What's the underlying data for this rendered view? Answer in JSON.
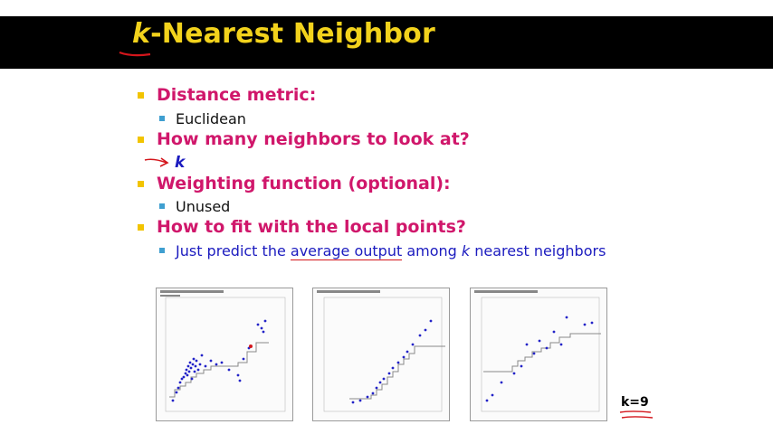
{
  "slide": {
    "title_k": "k",
    "title_rest": "-Nearest Neighbor",
    "bullets": [
      {
        "heading": "Distance metric:",
        "sub": "Euclidean"
      },
      {
        "heading": "How many neighbors to look at?",
        "sub": "k"
      },
      {
        "heading": "Weighting function (optional):",
        "sub": "Unused"
      },
      {
        "heading": "How to fit with the local points?",
        "sub_pre": "Just predict the ",
        "sub_underlined": "average output",
        "sub_mid": " among ",
        "sub_k": "k",
        "sub_post": " nearest neighbors"
      }
    ],
    "k_label": "k=9"
  },
  "colors": {
    "title_bar": "#000000",
    "title_text": "#f2d21c",
    "heading": "#d0176b",
    "annotation": "#d4161c",
    "points": "#2323c8"
  },
  "chart_data": [
    {
      "type": "scatter",
      "series": [
        {
          "values": [
            [
              0.02,
              5
            ],
            [
              0.04,
              10
            ],
            [
              0.05,
              12
            ],
            [
              0.06,
              15
            ],
            [
              0.07,
              18
            ],
            [
              0.08,
              20
            ],
            [
              0.09,
              17
            ],
            [
              0.1,
              22
            ],
            [
              0.11,
              19
            ],
            [
              0.12,
              24
            ],
            [
              0.13,
              27
            ],
            [
              0.14,
              21
            ],
            [
              0.15,
              25
            ],
            [
              0.16,
              23
            ],
            [
              0.17,
              28
            ],
            [
              0.18,
              32
            ],
            [
              0.2,
              30
            ],
            [
              0.22,
              28
            ],
            [
              0.25,
              31
            ],
            [
              0.28,
              35
            ],
            [
              0.3,
              27
            ],
            [
              0.32,
              33
            ],
            [
              0.34,
              45
            ],
            [
              0.36,
              50
            ],
            [
              0.38,
              52
            ]
          ]
        }
      ]
    },
    {
      "type": "scatter",
      "series": [
        {
          "values": [
            [
              100,
              20
            ],
            [
              200,
              30
            ],
            [
              300,
              50
            ],
            [
              350,
              80
            ],
            [
              400,
              110
            ],
            [
              450,
              150
            ],
            [
              500,
              170
            ],
            [
              550,
              210
            ],
            [
              600,
              230
            ],
            [
              650,
              260
            ],
            [
              700,
              280
            ],
            [
              750,
              310
            ],
            [
              800,
              330
            ],
            [
              850,
              350
            ],
            [
              900,
              380
            ],
            [
              950,
              400
            ]
          ]
        }
      ]
    },
    {
      "type": "scatter",
      "series": [
        {
          "values": [
            [
              1,
              2
            ],
            [
              2,
              3
            ],
            [
              3,
              4
            ],
            [
              4,
              5
            ],
            [
              5,
              5.5
            ],
            [
              6,
              6
            ],
            [
              7,
              6.5
            ],
            [
              8,
              7
            ],
            [
              9,
              7.5
            ],
            [
              10,
              8
            ],
            [
              11,
              8.5
            ],
            [
              12,
              9
            ],
            [
              13,
              10
            ],
            [
              14,
              11
            ]
          ]
        }
      ]
    }
  ]
}
